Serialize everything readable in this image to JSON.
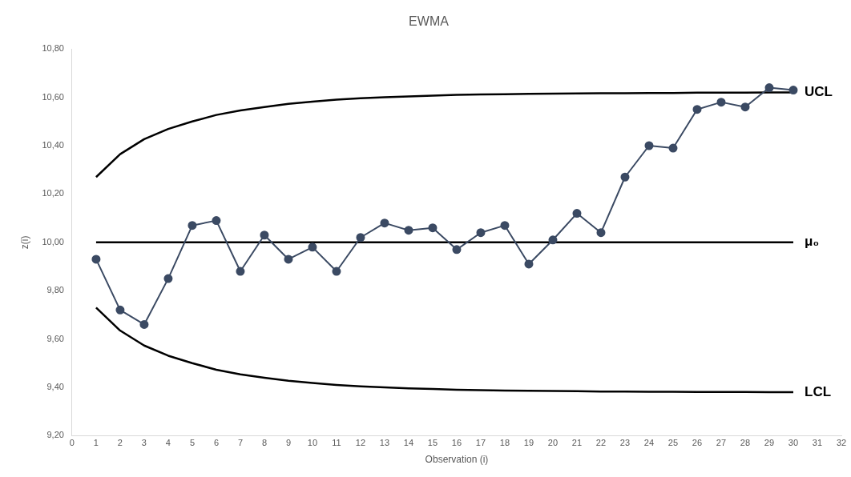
{
  "chart_data": {
    "type": "line",
    "title": "EWMA",
    "xlabel": "Observation (i)",
    "ylabel": "z(i)",
    "x": [
      1,
      2,
      3,
      4,
      5,
      6,
      7,
      8,
      9,
      10,
      11,
      12,
      13,
      14,
      15,
      16,
      17,
      18,
      19,
      20,
      21,
      22,
      23,
      24,
      25,
      26,
      27,
      28,
      29,
      30
    ],
    "series": [
      {
        "color": "#3b4a63",
        "marker": "circle",
        "values": [
          9.93,
          9.72,
          9.66,
          9.85,
          10.07,
          10.09,
          9.88,
          10.03,
          9.93,
          9.98,
          9.88,
          10.02,
          10.08,
          10.05,
          10.06,
          9.97,
          10.04,
          10.07,
          9.91,
          10.01,
          10.12,
          10.04,
          10.27,
          10.4,
          10.39,
          10.55,
          10.58,
          10.56,
          10.64,
          10.63
        ]
      },
      {
        "name": "UCL",
        "color": "#000000",
        "marker": "none",
        "values": [
          10.27,
          10.365,
          10.427,
          10.469,
          10.5,
          10.527,
          10.546,
          10.56,
          10.573,
          10.582,
          10.59,
          10.596,
          10.6,
          10.604,
          10.607,
          10.61,
          10.612,
          10.613,
          10.614,
          10.615,
          10.616,
          10.617,
          10.617,
          10.618,
          10.618,
          10.619,
          10.619,
          10.619,
          10.62,
          10.62
        ]
      },
      {
        "name": "μ₀",
        "color": "#000000",
        "marker": "none",
        "values": [
          10,
          10,
          10,
          10,
          10,
          10,
          10,
          10,
          10,
          10,
          10,
          10,
          10,
          10,
          10,
          10,
          10,
          10,
          10,
          10,
          10,
          10,
          10,
          10,
          10,
          10,
          10,
          10,
          10,
          10
        ]
      },
      {
        "name": "LCL",
        "color": "#000000",
        "marker": "none",
        "values": [
          9.73,
          9.635,
          9.573,
          9.531,
          9.5,
          9.473,
          9.454,
          9.44,
          9.427,
          9.418,
          9.41,
          9.404,
          9.4,
          9.396,
          9.393,
          9.39,
          9.388,
          9.387,
          9.386,
          9.385,
          9.384,
          9.383,
          9.383,
          9.382,
          9.382,
          9.381,
          9.381,
          9.381,
          9.38,
          9.38
        ]
      }
    ],
    "xlim": [
      0,
      32
    ],
    "xticks": [
      0,
      1,
      2,
      3,
      4,
      5,
      6,
      7,
      8,
      9,
      10,
      11,
      12,
      13,
      14,
      15,
      16,
      17,
      18,
      19,
      20,
      21,
      22,
      23,
      24,
      25,
      26,
      27,
      28,
      29,
      30,
      31,
      32
    ],
    "ylim": [
      9.2,
      10.8
    ],
    "yticks": [
      {
        "value": 9.2,
        "label": "9,20"
      },
      {
        "value": 9.4,
        "label": "9,40"
      },
      {
        "value": 9.6,
        "label": "9,60"
      },
      {
        "value": 9.8,
        "label": "9,80"
      },
      {
        "value": 10,
        "label": "10,00"
      },
      {
        "value": 10.2,
        "label": "10,20"
      },
      {
        "value": 10.4,
        "label": "10,40"
      },
      {
        "value": 10.6,
        "label": "10,60"
      },
      {
        "value": 10.8,
        "label": "10,80"
      }
    ],
    "grid": false,
    "legend": false
  }
}
